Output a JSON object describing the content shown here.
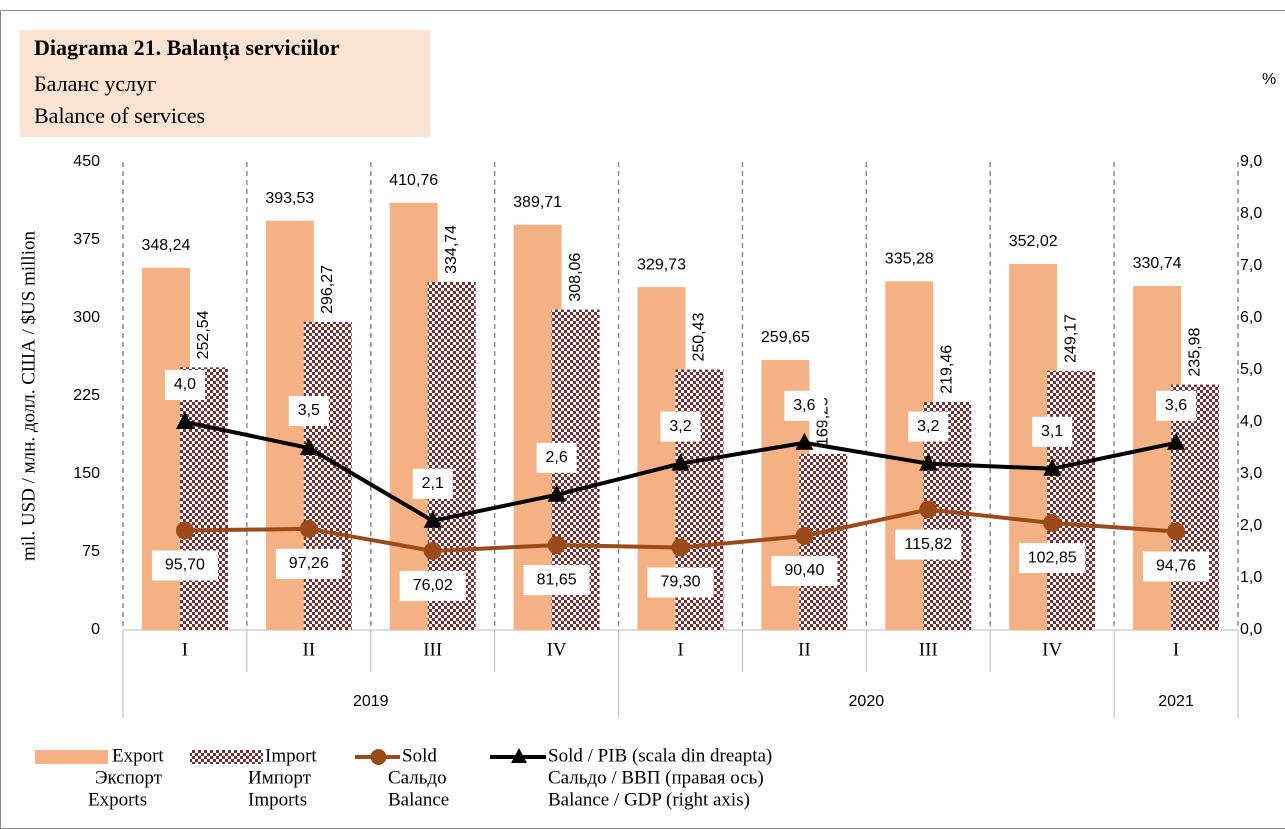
{
  "chart_data": {
    "type": "bar-line",
    "title": "Diagrama 21. Balanța serviciilor",
    "subtitle": [
      "Баланс услуг",
      "Balance of services"
    ],
    "y_label": "mil. USD / млн. долл. США / $US million",
    "y2_label": "%",
    "categories": [
      "I",
      "II",
      "III",
      "IV",
      "I",
      "II",
      "III",
      "IV",
      "I"
    ],
    "category_groups": [
      "2019",
      "2019",
      "2019",
      "2019",
      "2020",
      "2020",
      "2020",
      "2020",
      "2021"
    ],
    "ylim": [
      0,
      450
    ],
    "yticks": [
      0,
      75,
      150,
      225,
      300,
      375,
      450
    ],
    "y2lim": [
      0,
      9
    ],
    "y2ticks": [
      {
        "value": 0,
        "label": "0,0"
      },
      {
        "value": 1,
        "label": "1,0"
      },
      {
        "value": 2,
        "label": "2,0"
      },
      {
        "value": 3,
        "label": "3,0"
      },
      {
        "value": 4,
        "label": "4,0"
      },
      {
        "value": 5,
        "label": "5,0"
      },
      {
        "value": 6,
        "label": "6,0"
      },
      {
        "value": 7,
        "label": "7,0"
      },
      {
        "value": 8,
        "label": "8,0"
      },
      {
        "value": 9,
        "label": "9,0"
      }
    ],
    "grid": true,
    "series": [
      {
        "name": "Export",
        "translations": [
          "Экспорт",
          "Exports"
        ],
        "kind": "bar",
        "color": "#f4b183",
        "values": [
          348.24,
          393.53,
          410.76,
          389.71,
          329.73,
          259.65,
          335.28,
          352.02,
          330.74
        ],
        "value_labels": [
          "348,24",
          "393,53",
          "410,76",
          "389,71",
          "329,73",
          "259,65",
          "335,28",
          "352,02",
          "330,74"
        ]
      },
      {
        "name": "Import",
        "translations": [
          "Импорт",
          "Imports"
        ],
        "kind": "bar",
        "color": "#7b2d2d",
        "values": [
          252.54,
          296.27,
          334.74,
          308.06,
          250.43,
          169.25,
          219.46,
          249.17,
          235.98
        ],
        "value_labels": [
          "252,54",
          "296,27",
          "334,74",
          "308,06",
          "250,43",
          "169,25",
          "219,46",
          "249,17",
          "235,98"
        ]
      },
      {
        "name": "Sold",
        "translations": [
          "Сальдо",
          "Balance"
        ],
        "kind": "line",
        "color": "#9c4a1a",
        "values": [
          95.7,
          97.26,
          76.02,
          81.65,
          79.3,
          90.4,
          115.82,
          102.85,
          94.76
        ],
        "value_labels": [
          "95,70",
          "97,26",
          "76,02",
          "81,65",
          "79,30",
          "90,40",
          "115,82",
          "102,85",
          "94,76"
        ]
      },
      {
        "name": "Sold / PIB (scala din dreapta)",
        "translations": [
          "Сальдо / ВВП (правая ось)",
          "Balance / GDP (right axis)"
        ],
        "kind": "line",
        "axis": "y2",
        "color": "#000000",
        "values": [
          4.0,
          3.5,
          2.1,
          2.6,
          3.2,
          3.6,
          3.2,
          3.1,
          3.6
        ],
        "value_labels": [
          "4,0",
          "3,5",
          "2,1",
          "2,6",
          "3,2",
          "3,6",
          "3,2",
          "3,1",
          "3,6"
        ]
      }
    ]
  }
}
